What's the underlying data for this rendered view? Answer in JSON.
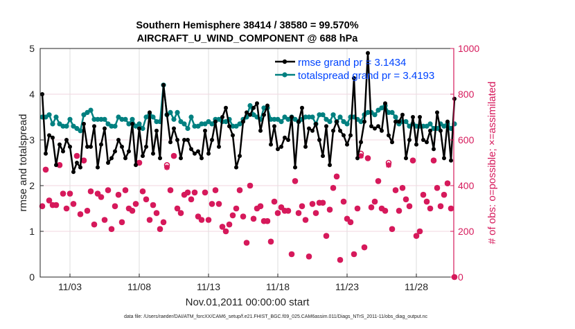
{
  "chart_data": {
    "type": "line",
    "title": [
      "Southern Hemisphere 38414 / 38580 = 99.570%",
      "AIRCRAFT_U_WIND_COMPONENT @ 688 hPa"
    ],
    "xlabel": "Nov.01,2011 00:00:00 start",
    "ylabel": "rmse and totalspread",
    "ylabel_right": "# of obs: o=possible; ×=assimilated",
    "footnote": "data file: /Users/raeder/DAI/ATM_forcXX/CAM6_setup/f.e21.FHIST_BGC.f09_025.CAM6assim.011/Diags_NTrS_2011-11/obs_diag_output.nc",
    "xlim": [
      -0.15,
      29.7
    ],
    "ylim": [
      0,
      5
    ],
    "ylim_right": [
      0,
      1000
    ],
    "x_step_days": 0.25,
    "x_ticks": [
      2,
      7,
      12,
      17,
      22,
      27
    ],
    "x_tick_labels": [
      "11/03",
      "11/08",
      "11/13",
      "11/18",
      "11/23",
      "11/28"
    ],
    "y_ticks": [
      0,
      1,
      2,
      3,
      4,
      5
    ],
    "y_tick_labels": [
      "0",
      "1",
      "2",
      "3",
      "4",
      "5"
    ],
    "y_right_ticks": [
      0,
      200,
      400,
      600,
      800,
      1000
    ],
    "y_right_tick_labels": [
      "0",
      "200",
      "400",
      "600",
      "800",
      "1000"
    ],
    "grid": true,
    "legend_placement": "top-right",
    "colors": {
      "rmse": "#000000",
      "spread": "#008080",
      "obs": "#d6195b",
      "legend_text": "#0044ff"
    },
    "series": [
      {
        "name": "rmse grand pr = 3.1434",
        "values": [
          4.0,
          2.7,
          3.1,
          3.05,
          2.45,
          2.9,
          2.75,
          3.0,
          2.85,
          2.3,
          2.5,
          2.4,
          3.35,
          2.85,
          2.85,
          3.3,
          2.4,
          2.9,
          3.25,
          2.5,
          2.6,
          2.75,
          3.0,
          2.85,
          2.6,
          2.75,
          3.35,
          2.45,
          3.25,
          2.65,
          2.85,
          3.6,
          2.7,
          3.2,
          2.6,
          4.2,
          3.55,
          2.95,
          3.25,
          3.0,
          2.6,
          3.0,
          3.0,
          2.8,
          2.7,
          2.75,
          2.6,
          3.2,
          2.7,
          3.0,
          3.4,
          2.85,
          3.5,
          3.7,
          3.3,
          3.1,
          2.4,
          2.65,
          3.4,
          3.6,
          3.55,
          3.7,
          3.8,
          3.2,
          3.55,
          3.75,
          2.9,
          3.3,
          2.8,
          2.85,
          3.05,
          3.0,
          3.5,
          2.4,
          3.4,
          3.7,
          2.85,
          3.25,
          3.2,
          3.35,
          3.0,
          2.65,
          3.3,
          2.45,
          3.2,
          3.4,
          3.2,
          3.1,
          2.9,
          3.1,
          4.35,
          2.6,
          2.95,
          3.4,
          4.9,
          3.3,
          3.25,
          3.3,
          3.2,
          3.8,
          3.1,
          2.95,
          3.4,
          3.4,
          3.55,
          2.6,
          3.0,
          3.5,
          2.9,
          3.5,
          3.0,
          2.95,
          3.2,
          2.8,
          3.6,
          3.2,
          2.6,
          3.4,
          2.55,
          3.9
        ]
      },
      {
        "name": "totalspread grand pr = 3.4193",
        "values": [
          3.5,
          3.5,
          3.55,
          3.35,
          3.5,
          3.35,
          3.3,
          3.3,
          3.45,
          3.3,
          3.25,
          3.2,
          3.55,
          3.6,
          3.65,
          3.45,
          3.45,
          3.45,
          3.45,
          3.35,
          3.3,
          3.3,
          3.5,
          3.45,
          3.45,
          3.35,
          3.45,
          3.3,
          3.35,
          3.25,
          3.5,
          3.55,
          3.5,
          3.4,
          3.4,
          4.2,
          3.55,
          3.6,
          3.45,
          3.6,
          3.4,
          3.35,
          3.25,
          3.5,
          3.3,
          3.3,
          3.35,
          3.35,
          3.4,
          3.35,
          3.45,
          3.45,
          3.4,
          3.4,
          3.45,
          3.3,
          3.3,
          3.35,
          3.45,
          3.5,
          3.75,
          3.55,
          3.5,
          3.45,
          3.7,
          3.7,
          3.45,
          3.45,
          3.45,
          3.4,
          3.5,
          3.45,
          3.5,
          3.45,
          3.4,
          3.45,
          3.5,
          3.5,
          3.5,
          3.35,
          3.55,
          3.55,
          3.45,
          3.4,
          3.55,
          3.4,
          3.5,
          3.4,
          3.35,
          3.5,
          3.5,
          3.45,
          3.4,
          3.55,
          3.6,
          3.6,
          3.55,
          3.65,
          3.7,
          3.75,
          3.6,
          3.6,
          3.5,
          3.35,
          3.4,
          3.4,
          3.3,
          3.35,
          3.3,
          3.3,
          3.3,
          3.3,
          3.35,
          3.25,
          3.25,
          3.35,
          3.3,
          3.35,
          3.25,
          3.35
        ]
      },
      {
        "name": "obs possible",
        "axis": "right",
        "values": [
          310,
          470,
          335,
          315,
          315,
          490,
          365,
          300,
          365,
          320,
          530,
          275,
          510,
          290,
          375,
          230,
          365,
          350,
          250,
          380,
          210,
          310,
          360,
          240,
          380,
          300,
          290,
          320,
          500,
          375,
          340,
          250,
          315,
          280,
          210,
          240,
          490,
          380,
          530,
          300,
          280,
          360,
          370,
          340,
          370,
          265,
          250,
          370,
          250,
          320,
          380,
          320,
          220,
          200,
          230,
          270,
          300,
          380,
          265,
          150,
          400,
          255,
          300,
          310,
          245,
          245,
          155,
          330,
          280,
          305,
          290,
          290,
          100,
          420,
          280,
          310,
          250,
          90,
          320,
          280,
          325,
          325,
          180,
          295,
          390,
          440,
          75,
          330,
          255,
          240,
          100,
          300,
          540,
          130,
          520,
          305,
          330,
          420,
          300,
          290,
          500,
          210,
          380,
          290,
          390,
          340,
          310,
          510,
          180,
          200,
          360,
          330,
          300,
          510,
          390,
          310,
          360,
          410,
          300,
          0
        ]
      },
      {
        "name": "obs assimilated",
        "axis": "right",
        "values": [
          310,
          470,
          335,
          315,
          315,
          490,
          365,
          300,
          365,
          320,
          530,
          275,
          510,
          290,
          375,
          230,
          365,
          350,
          250,
          380,
          210,
          310,
          360,
          240,
          380,
          300,
          290,
          320,
          500,
          375,
          340,
          250,
          315,
          280,
          210,
          240,
          480,
          380,
          530,
          300,
          280,
          360,
          370,
          340,
          370,
          265,
          250,
          370,
          250,
          320,
          380,
          320,
          220,
          200,
          230,
          270,
          300,
          380,
          265,
          150,
          400,
          255,
          300,
          310,
          245,
          245,
          155,
          330,
          280,
          305,
          290,
          290,
          100,
          420,
          280,
          310,
          250,
          90,
          320,
          280,
          325,
          325,
          180,
          295,
          390,
          440,
          75,
          330,
          255,
          240,
          100,
          300,
          530,
          130,
          520,
          305,
          330,
          420,
          300,
          290,
          490,
          210,
          380,
          290,
          390,
          340,
          310,
          510,
          180,
          200,
          360,
          330,
          300,
          510,
          390,
          310,
          360,
          410,
          300,
          0
        ]
      }
    ]
  }
}
